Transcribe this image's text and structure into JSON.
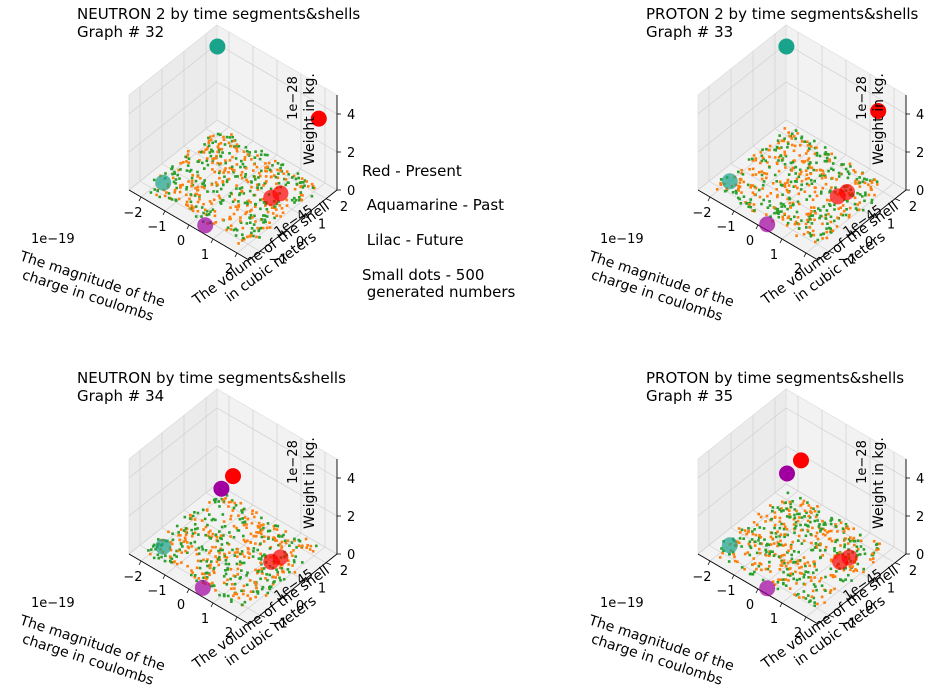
{
  "legend_text": {
    "line1": "Red - Present",
    "line2": " Aquamarine - Past",
    "line3": " Lilac - Future",
    "line4": "Small dots - 500",
    "line5": " generated numbers"
  },
  "colors": {
    "present": "#ff0000",
    "past": "#19a38a",
    "future": "#a000a0",
    "dots_a": "#ff7f0e",
    "dots_b": "#2ca02c",
    "pane_back": "#f2f2f2",
    "pane_side": "#ebebeb",
    "grid": "#d0d0d0"
  },
  "chart_data": [
    {
      "type": "scatter",
      "title_line1": "NEUTRON 2 by time segments&shells",
      "title_line2": "Graph # 32",
      "xlabel_line1": "The magnitude of the",
      "xlabel_line2": "charge in coulombs",
      "ylabel_line1": "The volume of the shell",
      "ylabel_line2": "in cubic meters",
      "zlabel_line1": "Weight in kg.",
      "x_offset": "1e−19",
      "y_offset": "1e−45",
      "z_offset": "1e−28",
      "x_ticks": [
        "−2",
        "−1",
        "0",
        "1",
        "2"
      ],
      "y_ticks": [
        "−1",
        "0",
        "1",
        "2"
      ],
      "z_ticks": [
        "0",
        "2",
        "4"
      ],
      "xlim": [
        -2.5,
        2.5
      ],
      "ylim": [
        -1.5,
        2.5
      ],
      "zlim": [
        0,
        5
      ],
      "dots": 500,
      "points": [
        {
          "name": "Past",
          "color": "past",
          "x": -2.3,
          "y": 2.3,
          "z": 4.2
        },
        {
          "name": "Present",
          "color": "present",
          "x": 2.2,
          "y": 2.0,
          "z": 4.0
        },
        {
          "name": "Present",
          "color": "present",
          "x": 1.7,
          "y": 0.8,
          "z": 0.8
        },
        {
          "name": "Present",
          "color": "present",
          "x": 1.5,
          "y": 0.6,
          "z": 0.6
        },
        {
          "name": "Future",
          "color": "future",
          "x": 0.4,
          "y": -1.2,
          "z": 0.0
        },
        {
          "name": "Past",
          "color": "past",
          "x": -1.9,
          "y": -0.6,
          "z": 0.0
        }
      ]
    },
    {
      "type": "scatter",
      "title_line1": "PROTON 2 by time segments&shells",
      "title_line2": "Graph # 33",
      "xlabel_line1": "The magnitude of the",
      "xlabel_line2": "charge in coulombs",
      "ylabel_line1": "The volume of the shell",
      "ylabel_line2": "in cubic meters",
      "zlabel_line1": "Weight in kg.",
      "x_offset": "1e−19",
      "y_offset": "1e−45",
      "z_offset": "1e−28",
      "x_ticks": [
        "−2",
        "−1",
        "0",
        "1",
        "2"
      ],
      "y_ticks": [
        "−1",
        "0",
        "1",
        "2"
      ],
      "z_ticks": [
        "0",
        "2",
        "4"
      ],
      "xlim": [
        -2.5,
        2.5
      ],
      "ylim": [
        -1.5,
        2.5
      ],
      "zlim": [
        0,
        5
      ],
      "dots": 500,
      "points": [
        {
          "name": "Past",
          "color": "past",
          "x": -2.3,
          "y": 2.3,
          "z": 4.2
        },
        {
          "name": "Present",
          "color": "present",
          "x": 1.8,
          "y": 2.0,
          "z": 4.1
        },
        {
          "name": "Present",
          "color": "present",
          "x": 1.6,
          "y": 0.8,
          "z": 0.8
        },
        {
          "name": "Present",
          "color": "present",
          "x": 1.4,
          "y": 0.6,
          "z": 0.6
        },
        {
          "name": "Future",
          "color": "future",
          "x": 0.2,
          "y": -1.3,
          "z": 0.0
        },
        {
          "name": "Past",
          "color": "past",
          "x": -2.0,
          "y": -0.6,
          "z": 0.0
        }
      ]
    },
    {
      "type": "scatter",
      "title_line1": "NEUTRON by time segments&shells",
      "title_line2": "Graph # 34",
      "xlabel_line1": "The magnitude of the",
      "xlabel_line2": "charge in coulombs",
      "ylabel_line1": "The volume of the shell",
      "ylabel_line2": "in cubic meters",
      "zlabel_line1": "Weight in kg.",
      "x_offset": "1e−19",
      "y_offset": "1e−45",
      "z_offset": "1e−28",
      "x_ticks": [
        "−2",
        "−1",
        "0",
        "1",
        "2"
      ],
      "y_ticks": [
        "−1",
        "0",
        "1",
        "2"
      ],
      "z_ticks": [
        "0",
        "2",
        "4"
      ],
      "xlim": [
        -2.5,
        2.5
      ],
      "ylim": [
        -1.5,
        2.5
      ],
      "zlim": [
        0,
        5
      ],
      "dots": 500,
      "points": [
        {
          "name": "Present",
          "color": "present",
          "x": 0.0,
          "y": 0.5,
          "z": 4.1
        },
        {
          "name": "Future",
          "color": "future",
          "x": -0.3,
          "y": 0.3,
          "z": 3.4
        },
        {
          "name": "Present",
          "color": "present",
          "x": 1.7,
          "y": 0.8,
          "z": 0.8
        },
        {
          "name": "Present",
          "color": "present",
          "x": 1.5,
          "y": 0.6,
          "z": 0.6
        },
        {
          "name": "Past",
          "color": "past",
          "x": -1.9,
          "y": -0.6,
          "z": 0.0
        },
        {
          "name": "Future",
          "color": "future",
          "x": 0.3,
          "y": -1.2,
          "z": 0.0
        }
      ]
    },
    {
      "type": "scatter",
      "title_line1": "PROTON by time segments&shells",
      "title_line2": "Graph # 35",
      "xlabel_line1": "The magnitude of the",
      "xlabel_line2": "charge in coulombs",
      "ylabel_line1": "The volume of the shell",
      "ylabel_line2": "in cubic meters",
      "zlabel_line1": "Weight in kg.",
      "x_offset": "1e−19",
      "y_offset": "1e−45",
      "z_offset": "1e−28",
      "x_ticks": [
        "−2",
        "−1",
        "0",
        "1",
        "2"
      ],
      "y_ticks": [
        "−1",
        "0",
        "1",
        "2"
      ],
      "z_ticks": [
        "0",
        "2",
        "4"
      ],
      "xlim": [
        -2.5,
        2.5
      ],
      "ylim": [
        -1.5,
        2.5
      ],
      "zlim": [
        0,
        5
      ],
      "dots": 500,
      "points": [
        {
          "name": "Present",
          "color": "present",
          "x": -0.5,
          "y": 1.0,
          "z": 4.1
        },
        {
          "name": "Future",
          "color": "future",
          "x": -0.9,
          "y": 0.8,
          "z": 3.3
        },
        {
          "name": "Present",
          "color": "present",
          "x": 1.7,
          "y": 0.8,
          "z": 0.8
        },
        {
          "name": "Present",
          "color": "present",
          "x": 1.5,
          "y": 0.6,
          "z": 0.6
        },
        {
          "name": "Past",
          "color": "past",
          "x": -2.0,
          "y": -0.6,
          "z": 0.0
        },
        {
          "name": "Future",
          "color": "future",
          "x": 0.2,
          "y": -1.3,
          "z": 0.0
        }
      ]
    }
  ]
}
